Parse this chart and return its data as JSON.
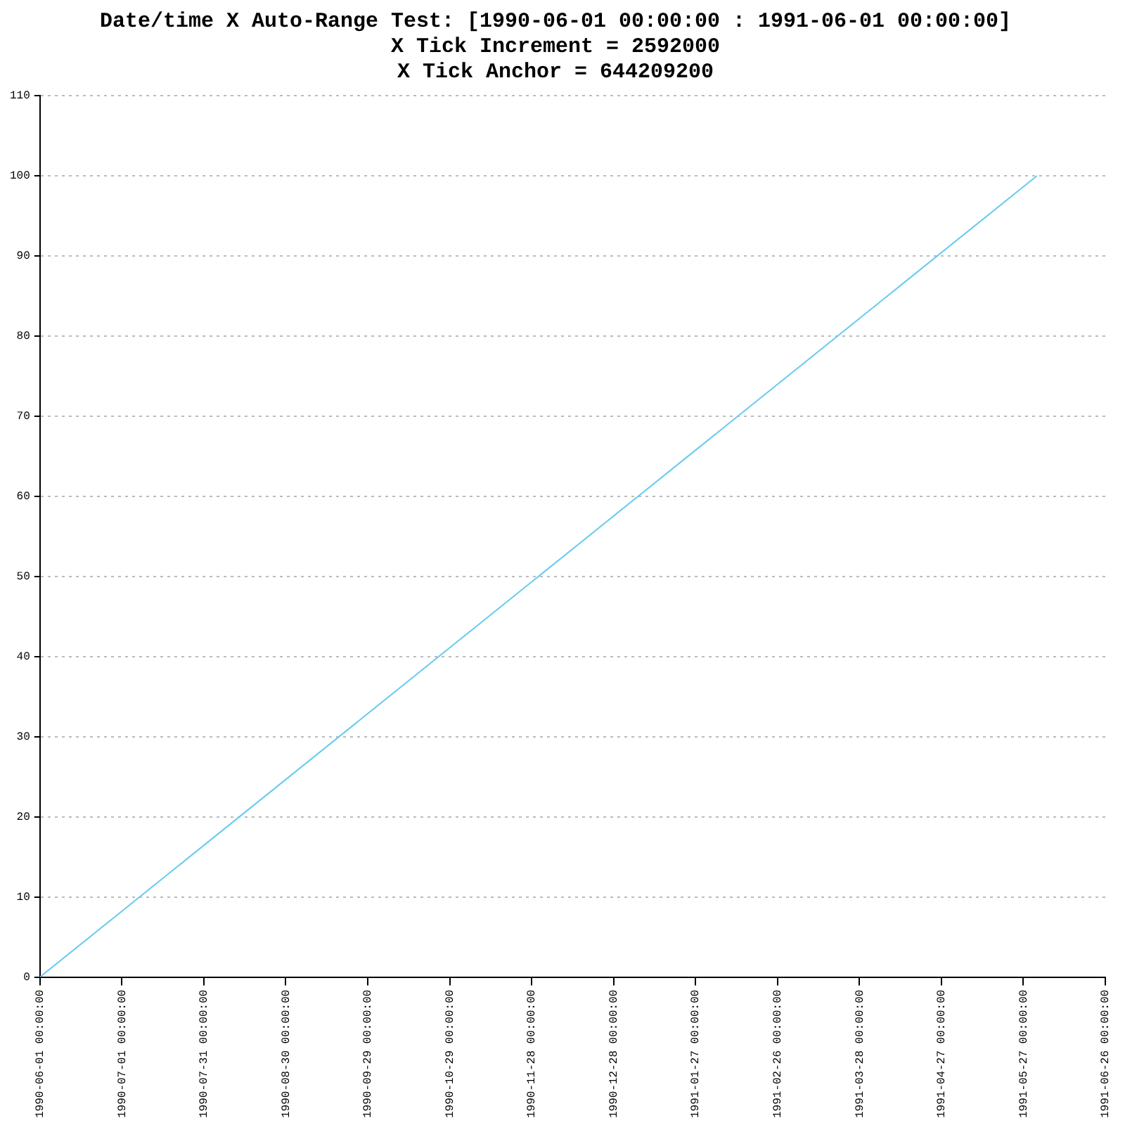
{
  "chart_data": {
    "type": "line",
    "title": "Date/time X Auto-Range Test: [1990-06-01 00:00:00 : 1991-06-01 00:00:00]",
    "subtitle": "X Tick Increment = 2592000\nX Tick Anchor = 644209200",
    "x": [
      "1990-06-01T00:00",
      "1991-06-01T00:00"
    ],
    "series": [
      {
        "color": "#66ccee",
        "values": [
          0,
          100
        ]
      }
    ],
    "xlim": [
      "1990-06-01T00:00",
      "1991-06-26T00:00"
    ],
    "xticks": [
      {
        "value": "1990-06-01T00:00",
        "label": "1990-06-01 00:00:00"
      },
      {
        "value": "1990-07-01T00:00",
        "label": "1990-07-01 00:00:00"
      },
      {
        "value": "1990-07-31T00:00",
        "label": "1990-07-31 00:00:00"
      },
      {
        "value": "1990-08-30T00:00",
        "label": "1990-08-30 00:00:00"
      },
      {
        "value": "1990-09-29T00:00",
        "label": "1990-09-29 00:00:00"
      },
      {
        "value": "1990-10-29T00:00",
        "label": "1990-10-29 00:00:00"
      },
      {
        "value": "1990-11-28T00:00",
        "label": "1990-11-28 00:00:00"
      },
      {
        "value": "1990-12-28T00:00",
        "label": "1990-12-28 00:00:00"
      },
      {
        "value": "1991-01-27T00:00",
        "label": "1991-01-27 00:00:00"
      },
      {
        "value": "1991-02-26T00:00",
        "label": "1991-02-26 00:00:00"
      },
      {
        "value": "1991-03-28T00:00",
        "label": "1991-03-28 00:00:00"
      },
      {
        "value": "1991-04-27T00:00",
        "label": "1991-04-27 00:00:00"
      },
      {
        "value": "1991-05-27T00:00",
        "label": "1991-05-27 00:00:00"
      },
      {
        "value": "1991-06-26T00:00",
        "label": "1991-06-26 00:00:00"
      }
    ],
    "ylim": [
      0,
      110
    ],
    "yticks": [
      0,
      10,
      20,
      30,
      40,
      50,
      60,
      70,
      80,
      90,
      100,
      110
    ],
    "grid": "y",
    "legend": false,
    "marker": "none",
    "line_style": "solid"
  }
}
